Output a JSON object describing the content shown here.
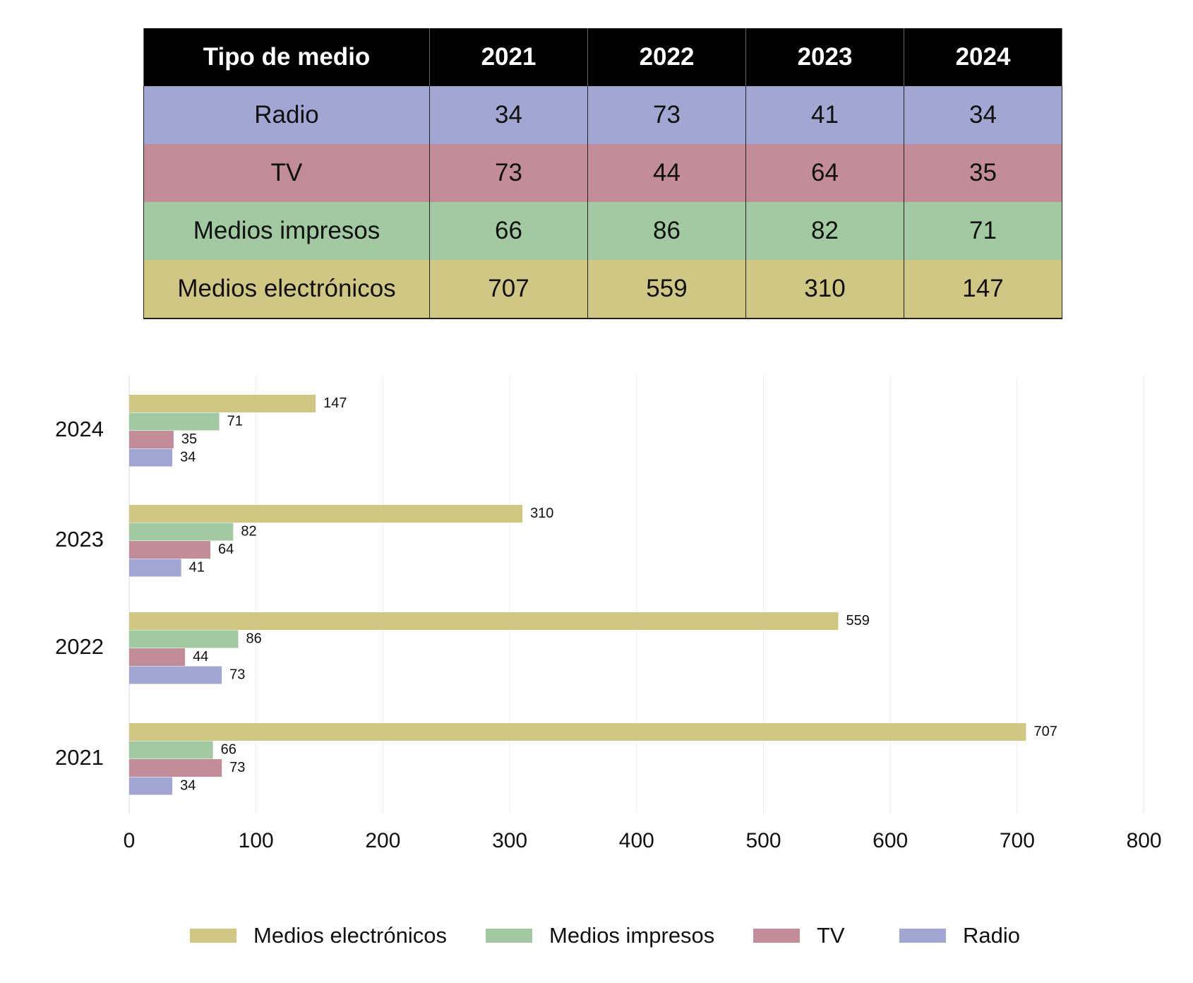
{
  "table": {
    "headers": [
      "Tipo de medio",
      "2021",
      "2022",
      "2023",
      "2024"
    ],
    "rows": [
      {
        "label": "Radio",
        "values": [
          "34",
          "73",
          "41",
          "34"
        ]
      },
      {
        "label": "TV",
        "values": [
          "73",
          "44",
          "64",
          "35"
        ]
      },
      {
        "label": "Medios impresos",
        "values": [
          "66",
          "86",
          "82",
          "71"
        ]
      },
      {
        "label": "Medios electrónicos",
        "values": [
          "707",
          "559",
          "310",
          "147"
        ]
      }
    ]
  },
  "colors": {
    "Medios electrónicos": "#d1c785",
    "Medios impresos": "#a2c9a2",
    "TV": "#c28c99",
    "Radio": "#a2a6d3"
  },
  "chart_data": {
    "type": "bar",
    "orientation": "horizontal",
    "categories": [
      "2024",
      "2023",
      "2022",
      "2021"
    ],
    "series": [
      {
        "name": "Medios electrónicos",
        "values": [
          147,
          310,
          559,
          707
        ]
      },
      {
        "name": "Medios impresos",
        "values": [
          71,
          82,
          86,
          66
        ]
      },
      {
        "name": "TV",
        "values": [
          35,
          64,
          44,
          73
        ]
      },
      {
        "name": "Radio",
        "values": [
          34,
          41,
          73,
          34
        ]
      }
    ],
    "xticks": [
      "0",
      "100",
      "200",
      "300",
      "400",
      "500",
      "600",
      "700",
      "800"
    ],
    "xlim": [
      0,
      800
    ],
    "grid": true,
    "legend_position": "bottom",
    "data_labels": true
  },
  "legend": {
    "items": [
      "Medios electrónicos",
      "Medios impresos",
      "TV",
      "Radio"
    ]
  }
}
